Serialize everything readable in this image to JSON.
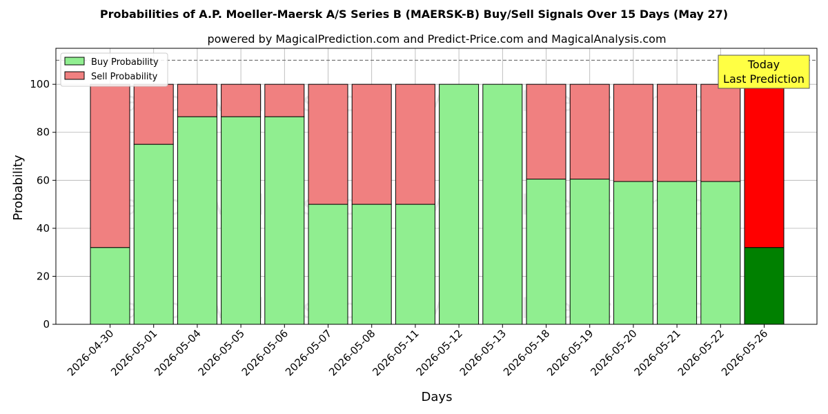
{
  "chart_data": {
    "type": "bar",
    "stacked": true,
    "title": "Probabilities of A.P. Moeller-Maersk A/S Series B (MAERSK-B) Buy/Sell Signals Over 15 Days (May 27)",
    "subtitle": "powered by MagicalPrediction.com and Predict-Price.com and MagicalAnalysis.com",
    "xlabel": "Days",
    "ylabel": "Probability",
    "ylim": [
      0,
      115
    ],
    "yticks": [
      0,
      20,
      40,
      60,
      80,
      100
    ],
    "grid": true,
    "legend_position": "top-left",
    "reference_line": {
      "y": 110,
      "style": "dashed"
    },
    "categories": [
      "2026-04-30",
      "2026-05-01",
      "2026-05-04",
      "2026-05-05",
      "2026-05-06",
      "2026-05-07",
      "2026-05-08",
      "2026-05-11",
      "2026-05-12",
      "2026-05-13",
      "2026-05-18",
      "2026-05-19",
      "2026-05-20",
      "2026-05-21",
      "2026-05-22",
      "2026-05-26"
    ],
    "series": [
      {
        "name": "Buy Probability",
        "color": "#90ee90",
        "highlight_color": "#008000",
        "values": [
          32,
          75,
          86.5,
          86.5,
          86.5,
          50,
          50,
          50,
          100,
          100,
          60.5,
          60.5,
          59.5,
          59.5,
          59.5,
          32
        ]
      },
      {
        "name": "Sell Probability",
        "color": "#f08080",
        "highlight_color": "#ff0000",
        "values": [
          68,
          25,
          13.5,
          13.5,
          13.5,
          50,
          50,
          50,
          0,
          0,
          39.5,
          39.5,
          40.5,
          40.5,
          40.5,
          68
        ]
      }
    ],
    "highlight_index": 15,
    "annotation": {
      "lines": [
        "Today",
        "Last Prediction"
      ],
      "background": "#ffff44"
    },
    "watermarks": [
      "MagicalAnalysis.com",
      "MagicalPrediction.com"
    ]
  }
}
